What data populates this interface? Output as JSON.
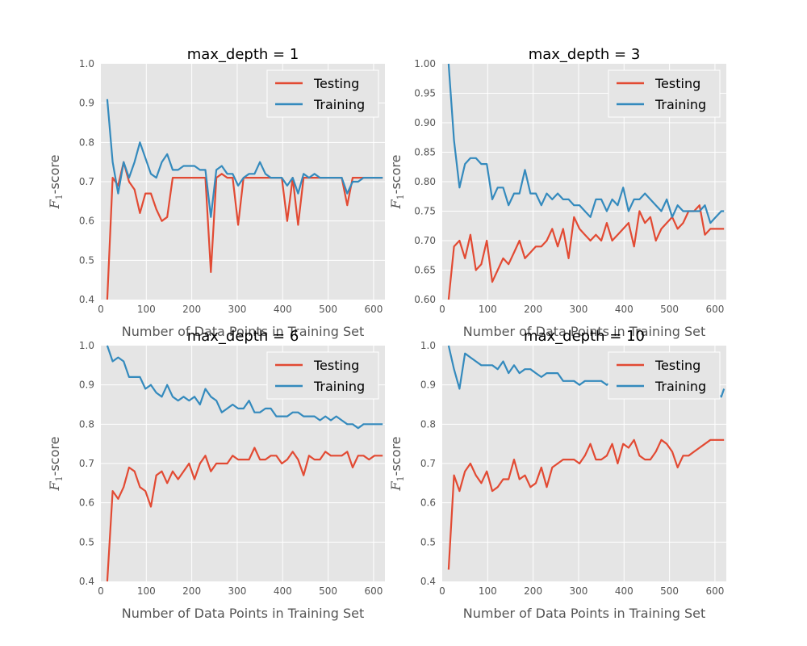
{
  "chart_data": [
    {
      "type": "line",
      "title": "max_depth = 1",
      "xlabel": "Number of Data Points in Training Set",
      "ylabel": "F1-score",
      "ylabel_main": "F",
      "ylabel_sub": "1",
      "ylabel_rest": "-score",
      "xlim": [
        0,
        625
      ],
      "ylim": [
        0.4,
        1.0
      ],
      "xticks": [
        0,
        100,
        200,
        300,
        400,
        500,
        600
      ],
      "yticks": [
        0.4,
        0.5,
        0.6,
        0.7,
        0.8,
        0.9,
        1.0
      ],
      "ytick_labels": [
        "0.4",
        "0.5",
        "0.6",
        "0.7",
        "0.8",
        "0.9",
        "1.0"
      ],
      "legend_position": "top-right",
      "x": [
        14,
        26,
        38,
        50,
        62,
        74,
        86,
        98,
        110,
        122,
        134,
        146,
        158,
        170,
        182,
        194,
        206,
        218,
        230,
        242,
        254,
        266,
        278,
        290,
        302,
        314,
        326,
        338,
        350,
        362,
        374,
        386,
        398,
        410,
        422,
        434,
        446,
        458,
        470,
        482,
        494,
        506,
        518,
        530,
        542,
        554,
        566,
        578,
        590,
        602,
        614,
        620
      ],
      "series": [
        {
          "name": "Testing",
          "color": "#E24A33",
          "values": [
            0.4,
            0.71,
            0.69,
            0.75,
            0.7,
            0.68,
            0.62,
            0.67,
            0.67,
            0.63,
            0.6,
            0.61,
            0.71,
            0.71,
            0.71,
            0.71,
            0.71,
            0.71,
            0.71,
            0.47,
            0.71,
            0.72,
            0.71,
            0.71,
            0.59,
            0.71,
            0.71,
            0.71,
            0.71,
            0.71,
            0.71,
            0.71,
            0.71,
            0.6,
            0.71,
            0.59,
            0.71,
            0.71,
            0.71,
            0.71,
            0.71,
            0.71,
            0.71,
            0.71,
            0.64,
            0.71,
            0.71,
            0.71,
            0.71,
            0.71,
            0.71,
            0.71
          ]
        },
        {
          "name": "Training",
          "color": "#348ABD",
          "values": [
            0.91,
            0.75,
            0.67,
            0.75,
            0.71,
            0.75,
            0.8,
            0.76,
            0.72,
            0.71,
            0.75,
            0.77,
            0.73,
            0.73,
            0.74,
            0.74,
            0.74,
            0.73,
            0.73,
            0.61,
            0.73,
            0.74,
            0.72,
            0.72,
            0.69,
            0.71,
            0.72,
            0.72,
            0.75,
            0.72,
            0.71,
            0.71,
            0.71,
            0.69,
            0.71,
            0.67,
            0.72,
            0.71,
            0.72,
            0.71,
            0.71,
            0.71,
            0.71,
            0.71,
            0.67,
            0.7,
            0.7,
            0.71,
            0.71,
            0.71,
            0.71,
            0.71
          ]
        }
      ]
    },
    {
      "type": "line",
      "title": "max_depth = 3",
      "xlabel": "Number of Data Points in Training Set",
      "ylabel": "F1-score",
      "ylabel_main": "F",
      "ylabel_sub": "1",
      "ylabel_rest": "-score",
      "xlim": [
        0,
        625
      ],
      "ylim": [
        0.6,
        1.0
      ],
      "xticks": [
        0,
        100,
        200,
        300,
        400,
        500,
        600
      ],
      "yticks": [
        0.6,
        0.65,
        0.7,
        0.75,
        0.8,
        0.85,
        0.9,
        0.95,
        1.0
      ],
      "ytick_labels": [
        "0.60",
        "0.65",
        "0.70",
        "0.75",
        "0.80",
        "0.85",
        "0.90",
        "0.95",
        "1.00"
      ],
      "legend_position": "top-right",
      "x": [
        14,
        26,
        38,
        50,
        62,
        74,
        86,
        98,
        110,
        122,
        134,
        146,
        158,
        170,
        182,
        194,
        206,
        218,
        230,
        242,
        254,
        266,
        278,
        290,
        302,
        314,
        326,
        338,
        350,
        362,
        374,
        386,
        398,
        410,
        422,
        434,
        446,
        458,
        470,
        482,
        494,
        506,
        518,
        530,
        542,
        554,
        566,
        578,
        590,
        602,
        614,
        620
      ],
      "series": [
        {
          "name": "Testing",
          "color": "#E24A33",
          "values": [
            0.6,
            0.69,
            0.7,
            0.67,
            0.71,
            0.65,
            0.66,
            0.7,
            0.63,
            0.65,
            0.67,
            0.66,
            0.68,
            0.7,
            0.67,
            0.68,
            0.69,
            0.69,
            0.7,
            0.72,
            0.69,
            0.72,
            0.67,
            0.74,
            0.72,
            0.71,
            0.7,
            0.71,
            0.7,
            0.73,
            0.7,
            0.71,
            0.72,
            0.73,
            0.69,
            0.75,
            0.73,
            0.74,
            0.7,
            0.72,
            0.73,
            0.74,
            0.72,
            0.73,
            0.75,
            0.75,
            0.76,
            0.71,
            0.72,
            0.72,
            0.72,
            0.72
          ]
        },
        {
          "name": "Training",
          "color": "#348ABD",
          "values": [
            1.0,
            0.87,
            0.79,
            0.83,
            0.84,
            0.84,
            0.83,
            0.83,
            0.77,
            0.79,
            0.79,
            0.76,
            0.78,
            0.78,
            0.82,
            0.78,
            0.78,
            0.76,
            0.78,
            0.77,
            0.78,
            0.77,
            0.77,
            0.76,
            0.76,
            0.75,
            0.74,
            0.77,
            0.77,
            0.75,
            0.77,
            0.76,
            0.79,
            0.75,
            0.77,
            0.77,
            0.78,
            0.77,
            0.76,
            0.75,
            0.77,
            0.74,
            0.76,
            0.75,
            0.75,
            0.75,
            0.75,
            0.76,
            0.73,
            0.74,
            0.75,
            0.75
          ]
        }
      ]
    },
    {
      "type": "line",
      "title": "max_depth = 6",
      "xlabel": "Number of Data Points in Training Set",
      "ylabel": "F1-score",
      "ylabel_main": "F",
      "ylabel_sub": "1",
      "ylabel_rest": "-score",
      "xlim": [
        0,
        625
      ],
      "ylim": [
        0.4,
        1.0
      ],
      "xticks": [
        0,
        100,
        200,
        300,
        400,
        500,
        600
      ],
      "yticks": [
        0.4,
        0.5,
        0.6,
        0.7,
        0.8,
        0.9,
        1.0
      ],
      "ytick_labels": [
        "0.4",
        "0.5",
        "0.6",
        "0.7",
        "0.8",
        "0.9",
        "1.0"
      ],
      "legend_position": "top-right",
      "x": [
        14,
        26,
        38,
        50,
        62,
        74,
        86,
        98,
        110,
        122,
        134,
        146,
        158,
        170,
        182,
        194,
        206,
        218,
        230,
        242,
        254,
        266,
        278,
        290,
        302,
        314,
        326,
        338,
        350,
        362,
        374,
        386,
        398,
        410,
        422,
        434,
        446,
        458,
        470,
        482,
        494,
        506,
        518,
        530,
        542,
        554,
        566,
        578,
        590,
        602,
        614,
        620
      ],
      "series": [
        {
          "name": "Testing",
          "color": "#E24A33",
          "values": [
            0.4,
            0.63,
            0.61,
            0.64,
            0.69,
            0.68,
            0.64,
            0.63,
            0.59,
            0.67,
            0.68,
            0.65,
            0.68,
            0.66,
            0.68,
            0.7,
            0.66,
            0.7,
            0.72,
            0.68,
            0.7,
            0.7,
            0.7,
            0.72,
            0.71,
            0.71,
            0.71,
            0.74,
            0.71,
            0.71,
            0.72,
            0.72,
            0.7,
            0.71,
            0.73,
            0.71,
            0.67,
            0.72,
            0.71,
            0.71,
            0.73,
            0.72,
            0.72,
            0.72,
            0.73,
            0.69,
            0.72,
            0.72,
            0.71,
            0.72,
            0.72,
            0.72
          ]
        },
        {
          "name": "Training",
          "color": "#348ABD",
          "values": [
            1.0,
            0.96,
            0.97,
            0.96,
            0.92,
            0.92,
            0.92,
            0.89,
            0.9,
            0.88,
            0.87,
            0.9,
            0.87,
            0.86,
            0.87,
            0.86,
            0.87,
            0.85,
            0.89,
            0.87,
            0.86,
            0.83,
            0.84,
            0.85,
            0.84,
            0.84,
            0.86,
            0.83,
            0.83,
            0.84,
            0.84,
            0.82,
            0.82,
            0.82,
            0.83,
            0.83,
            0.82,
            0.82,
            0.82,
            0.81,
            0.82,
            0.81,
            0.82,
            0.81,
            0.8,
            0.8,
            0.79,
            0.8,
            0.8,
            0.8,
            0.8,
            0.8
          ]
        }
      ]
    },
    {
      "type": "line",
      "title": "max_depth = 10",
      "xlabel": "Number of Data Points in Training Set",
      "ylabel": "F1-score",
      "ylabel_main": "F",
      "ylabel_sub": "1",
      "ylabel_rest": "-score",
      "xlim": [
        0,
        625
      ],
      "ylim": [
        0.4,
        1.0
      ],
      "xticks": [
        0,
        100,
        200,
        300,
        400,
        500,
        600
      ],
      "yticks": [
        0.4,
        0.5,
        0.6,
        0.7,
        0.8,
        0.9,
        1.0
      ],
      "ytick_labels": [
        "0.4",
        "0.5",
        "0.6",
        "0.7",
        "0.8",
        "0.9",
        "1.0"
      ],
      "legend_position": "top-right",
      "x": [
        14,
        26,
        38,
        50,
        62,
        74,
        86,
        98,
        110,
        122,
        134,
        146,
        158,
        170,
        182,
        194,
        206,
        218,
        230,
        242,
        254,
        266,
        278,
        290,
        302,
        314,
        326,
        338,
        350,
        362,
        374,
        386,
        398,
        410,
        422,
        434,
        446,
        458,
        470,
        482,
        494,
        506,
        518,
        530,
        542,
        554,
        566,
        578,
        590,
        602,
        614,
        620
      ],
      "series": [
        {
          "name": "Testing",
          "color": "#E24A33",
          "values": [
            0.43,
            0.67,
            0.63,
            0.68,
            0.7,
            0.67,
            0.65,
            0.68,
            0.63,
            0.64,
            0.66,
            0.66,
            0.71,
            0.66,
            0.67,
            0.64,
            0.65,
            0.69,
            0.64,
            0.69,
            0.7,
            0.71,
            0.71,
            0.71,
            0.7,
            0.72,
            0.75,
            0.71,
            0.71,
            0.72,
            0.75,
            0.7,
            0.75,
            0.74,
            0.76,
            0.72,
            0.71,
            0.71,
            0.73,
            0.76,
            0.75,
            0.73,
            0.69,
            0.72,
            0.72,
            0.73,
            0.74,
            0.75,
            0.76,
            0.76,
            0.76,
            0.76
          ]
        },
        {
          "name": "Training",
          "color": "#348ABD",
          "values": [
            1.0,
            0.94,
            0.89,
            0.98,
            0.97,
            0.96,
            0.95,
            0.95,
            0.95,
            0.94,
            0.96,
            0.93,
            0.95,
            0.93,
            0.94,
            0.94,
            0.93,
            0.92,
            0.93,
            0.93,
            0.93,
            0.91,
            0.91,
            0.91,
            0.9,
            0.91,
            0.91,
            0.91,
            0.91,
            0.9,
            0.91,
            0.9,
            0.9,
            0.91,
            0.92,
            0.93,
            0.93,
            0.9,
            0.91,
            0.9,
            0.89,
            0.9,
            0.9,
            0.89,
            0.89,
            0.89,
            0.89,
            0.88,
            0.89,
            0.88,
            0.87,
            0.89
          ]
        }
      ]
    }
  ]
}
